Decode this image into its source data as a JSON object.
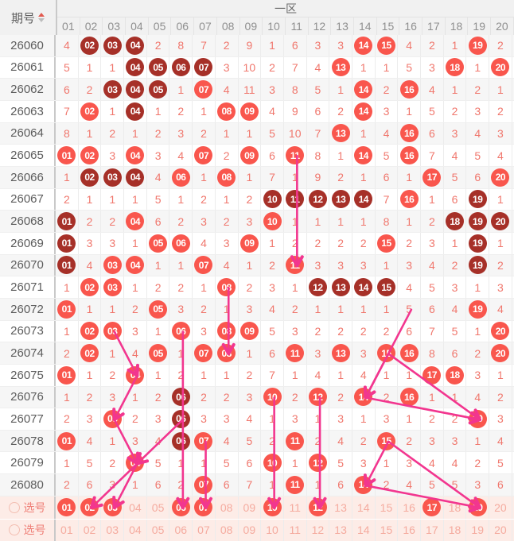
{
  "header": {
    "issue_col": "期号",
    "zone_label": "一区",
    "columns": [
      "01",
      "02",
      "03",
      "04",
      "05",
      "06",
      "07",
      "08",
      "09",
      "10",
      "11",
      "12",
      "13",
      "14",
      "15",
      "16",
      "17",
      "18",
      "19",
      "20"
    ]
  },
  "colors": {
    "header_bg": "#f1f1f1",
    "header_text": "#8f8f8f",
    "zone_text": "#666666",
    "issue_text": "#5c5c5c",
    "stripe_bg": "#f6f6f6",
    "miss_text": "#f0776d",
    "ball_light": "#f9564d",
    "ball_dark": "#a63028",
    "arrow": "#f2368f",
    "sel_bg": "#fdece7",
    "sel_text_dim": "#f5ab9f",
    "sel_label": "#ef8078",
    "radio_border": "#f3beb2",
    "sort_up": "#e25a50",
    "sort_down": "#bdbdbd",
    "grid_line": "#ececec"
  },
  "rows": [
    {
      "issue": "26060",
      "cells": [
        "4",
        {
          "v": "02",
          "b": "d"
        },
        {
          "v": "03",
          "b": "d"
        },
        {
          "v": "04",
          "b": "d"
        },
        "2",
        "8",
        "7",
        "2",
        "9",
        "1",
        "6",
        "3",
        "3",
        {
          "v": "14",
          "b": "l"
        },
        {
          "v": "15",
          "b": "l"
        },
        "4",
        "2",
        "1",
        {
          "v": "19",
          "b": "l"
        },
        "2"
      ]
    },
    {
      "issue": "26061",
      "cells": [
        "5",
        "1",
        "1",
        {
          "v": "04",
          "b": "d"
        },
        {
          "v": "05",
          "b": "d"
        },
        {
          "v": "06",
          "b": "d"
        },
        {
          "v": "07",
          "b": "d"
        },
        "3",
        "10",
        "2",
        "7",
        "4",
        {
          "v": "13",
          "b": "l"
        },
        "1",
        "1",
        "5",
        "3",
        {
          "v": "18",
          "b": "l"
        },
        "1",
        {
          "v": "20",
          "b": "l"
        }
      ]
    },
    {
      "issue": "26062",
      "cells": [
        "6",
        "2",
        {
          "v": "03",
          "b": "d"
        },
        {
          "v": "04",
          "b": "d"
        },
        {
          "v": "05",
          "b": "d"
        },
        "1",
        {
          "v": "07",
          "b": "l"
        },
        "4",
        "11",
        "3",
        "8",
        "5",
        "1",
        {
          "v": "14",
          "b": "l"
        },
        "2",
        {
          "v": "16",
          "b": "l"
        },
        "4",
        "1",
        "2",
        "1"
      ]
    },
    {
      "issue": "26063",
      "cells": [
        "7",
        {
          "v": "02",
          "b": "l"
        },
        "1",
        {
          "v": "04",
          "b": "d"
        },
        "1",
        "2",
        "1",
        {
          "v": "08",
          "b": "l"
        },
        {
          "v": "09",
          "b": "l"
        },
        "4",
        "9",
        "6",
        "2",
        {
          "v": "14",
          "b": "l"
        },
        "3",
        "1",
        "5",
        "2",
        "3",
        "2"
      ]
    },
    {
      "issue": "26064",
      "cells": [
        "8",
        "1",
        "2",
        "1",
        "2",
        "3",
        "2",
        "1",
        "1",
        "5",
        "10",
        "7",
        {
          "v": "13",
          "b": "l"
        },
        "1",
        "4",
        {
          "v": "16",
          "b": "l"
        },
        "6",
        "3",
        "4",
        "3"
      ]
    },
    {
      "issue": "26065",
      "cells": [
        {
          "v": "01",
          "b": "l"
        },
        {
          "v": "02",
          "b": "l"
        },
        "3",
        {
          "v": "04",
          "b": "l"
        },
        "3",
        "4",
        {
          "v": "07",
          "b": "l"
        },
        "2",
        {
          "v": "09",
          "b": "l"
        },
        "6",
        {
          "v": "11",
          "b": "l"
        },
        "8",
        "1",
        {
          "v": "14",
          "b": "l"
        },
        "5",
        {
          "v": "16",
          "b": "l"
        },
        "7",
        "4",
        "5",
        "4"
      ]
    },
    {
      "issue": "26066",
      "cells": [
        "1",
        {
          "v": "02",
          "b": "d"
        },
        {
          "v": "03",
          "b": "d"
        },
        {
          "v": "04",
          "b": "d"
        },
        "4",
        {
          "v": "06",
          "b": "l"
        },
        "1",
        {
          "v": "08",
          "b": "l"
        },
        "1",
        "7",
        "1",
        "9",
        "2",
        "1",
        "6",
        "1",
        {
          "v": "17",
          "b": "l"
        },
        "5",
        "6",
        {
          "v": "20",
          "b": "l"
        }
      ]
    },
    {
      "issue": "26067",
      "cells": [
        "2",
        "1",
        "1",
        "1",
        "5",
        "1",
        "2",
        "1",
        "2",
        {
          "v": "10",
          "b": "d"
        },
        {
          "v": "11",
          "b": "d"
        },
        {
          "v": "12",
          "b": "d"
        },
        {
          "v": "13",
          "b": "d"
        },
        {
          "v": "14",
          "b": "d"
        },
        "7",
        {
          "v": "16",
          "b": "l"
        },
        "1",
        "6",
        {
          "v": "19",
          "b": "d"
        },
        "1"
      ]
    },
    {
      "issue": "26068",
      "cells": [
        {
          "v": "01",
          "b": "d"
        },
        "2",
        "2",
        {
          "v": "04",
          "b": "l"
        },
        "6",
        "2",
        "3",
        "2",
        "3",
        {
          "v": "10",
          "b": "l"
        },
        "1",
        "1",
        "1",
        "1",
        "8",
        "1",
        "2",
        {
          "v": "18",
          "b": "d"
        },
        {
          "v": "19",
          "b": "d"
        },
        {
          "v": "20",
          "b": "d"
        }
      ]
    },
    {
      "issue": "26069",
      "cells": [
        {
          "v": "01",
          "b": "d"
        },
        "3",
        "3",
        "1",
        {
          "v": "05",
          "b": "l"
        },
        {
          "v": "06",
          "b": "l"
        },
        "4",
        "3",
        {
          "v": "09",
          "b": "l"
        },
        "1",
        "2",
        "2",
        "2",
        "2",
        {
          "v": "15",
          "b": "l"
        },
        "2",
        "3",
        "1",
        {
          "v": "19",
          "b": "d"
        },
        "1"
      ]
    },
    {
      "issue": "26070",
      "cells": [
        {
          "v": "01",
          "b": "d"
        },
        "4",
        {
          "v": "03",
          "b": "l"
        },
        {
          "v": "04",
          "b": "l"
        },
        "1",
        "1",
        {
          "v": "07",
          "b": "l"
        },
        "4",
        "1",
        "2",
        {
          "v": "11",
          "b": "l"
        },
        "3",
        "3",
        "3",
        "1",
        "3",
        "4",
        "2",
        {
          "v": "19",
          "b": "d"
        },
        "2"
      ]
    },
    {
      "issue": "26071",
      "cells": [
        "1",
        {
          "v": "02",
          "b": "l"
        },
        {
          "v": "03",
          "b": "l"
        },
        "1",
        "2",
        "2",
        "1",
        {
          "v": "08",
          "b": "l"
        },
        "2",
        "3",
        "1",
        {
          "v": "12",
          "b": "d"
        },
        {
          "v": "13",
          "b": "d"
        },
        {
          "v": "14",
          "b": "d"
        },
        {
          "v": "15",
          "b": "d"
        },
        "4",
        "5",
        "3",
        "1",
        "3"
      ]
    },
    {
      "issue": "26072",
      "cells": [
        {
          "v": "01",
          "b": "l"
        },
        "1",
        "1",
        "2",
        {
          "v": "05",
          "b": "l"
        },
        "3",
        "2",
        "1",
        "3",
        "4",
        "2",
        "1",
        "1",
        "1",
        "1",
        "5",
        "6",
        "4",
        {
          "v": "19",
          "b": "l"
        },
        "4"
      ]
    },
    {
      "issue": "26073",
      "cells": [
        "1",
        {
          "v": "02",
          "b": "l"
        },
        {
          "v": "03",
          "b": "l"
        },
        "3",
        "1",
        {
          "v": "06",
          "b": "l"
        },
        "3",
        {
          "v": "08",
          "b": "l"
        },
        {
          "v": "09",
          "b": "l"
        },
        "5",
        "3",
        "2",
        "2",
        "2",
        "2",
        "6",
        "7",
        "5",
        "1",
        {
          "v": "20",
          "b": "l"
        }
      ]
    },
    {
      "issue": "26074",
      "cells": [
        "2",
        {
          "v": "02",
          "b": "l"
        },
        "1",
        "4",
        {
          "v": "05",
          "b": "l"
        },
        "1",
        {
          "v": "07",
          "b": "l"
        },
        {
          "v": "08",
          "b": "l"
        },
        "1",
        "6",
        {
          "v": "11",
          "b": "l"
        },
        "3",
        {
          "v": "13",
          "b": "l"
        },
        "3",
        {
          "v": "15",
          "b": "l"
        },
        {
          "v": "16",
          "b": "l"
        },
        "8",
        "6",
        "2",
        {
          "v": "20",
          "b": "l"
        }
      ]
    },
    {
      "issue": "26075",
      "cells": [
        {
          "v": "01",
          "b": "l"
        },
        "1",
        "2",
        {
          "v": "04",
          "b": "l"
        },
        "1",
        "2",
        "1",
        "1",
        "2",
        "7",
        "1",
        "4",
        "1",
        "4",
        "1",
        "1",
        {
          "v": "17",
          "b": "l"
        },
        {
          "v": "18",
          "b": "l"
        },
        "3",
        "1"
      ]
    },
    {
      "issue": "26076",
      "cells": [
        "1",
        "2",
        "3",
        "1",
        "2",
        {
          "v": "06",
          "b": "d"
        },
        "2",
        "2",
        "3",
        {
          "v": "10",
          "b": "l"
        },
        "2",
        {
          "v": "12",
          "b": "l"
        },
        "2",
        {
          "v": "14",
          "b": "l"
        },
        "2",
        {
          "v": "16",
          "b": "l"
        },
        "1",
        "1",
        "4",
        "2"
      ]
    },
    {
      "issue": "26077",
      "cells": [
        "2",
        "3",
        {
          "v": "03",
          "b": "l"
        },
        "2",
        "3",
        {
          "v": "06",
          "b": "d"
        },
        "3",
        "3",
        "4",
        "1",
        "3",
        "1",
        "3",
        "1",
        "3",
        "1",
        "2",
        "2",
        {
          "v": "19",
          "b": "l"
        },
        "3"
      ]
    },
    {
      "issue": "26078",
      "cells": [
        {
          "v": "01",
          "b": "l"
        },
        "4",
        "1",
        "3",
        "4",
        {
          "v": "06",
          "b": "d"
        },
        {
          "v": "07",
          "b": "l"
        },
        "4",
        "5",
        "2",
        {
          "v": "11",
          "b": "l"
        },
        "2",
        "4",
        "2",
        {
          "v": "15",
          "b": "l"
        },
        "2",
        "3",
        "3",
        "1",
        "4"
      ]
    },
    {
      "issue": "26079",
      "cells": [
        "1",
        "5",
        "2",
        {
          "v": "04",
          "b": "l"
        },
        "5",
        "1",
        "1",
        "5",
        "6",
        {
          "v": "10",
          "b": "l"
        },
        "1",
        {
          "v": "12",
          "b": "l"
        },
        "5",
        "3",
        "1",
        "3",
        "4",
        "4",
        "2",
        "5"
      ]
    },
    {
      "issue": "26080",
      "cells": [
        "2",
        "6",
        "3",
        "1",
        "6",
        "2",
        {
          "v": "07",
          "b": "l"
        },
        "6",
        "7",
        "1",
        {
          "v": "11",
          "b": "l"
        },
        "1",
        "6",
        {
          "v": "14",
          "b": "l"
        },
        "2",
        "4",
        "5",
        "5",
        "3",
        "6"
      ]
    }
  ],
  "selection": {
    "label": "选号",
    "row1": [
      {
        "v": "01",
        "on": true
      },
      {
        "v": "02",
        "on": true
      },
      {
        "v": "03",
        "on": true
      },
      {
        "v": "04",
        "on": false
      },
      {
        "v": "05",
        "on": false
      },
      {
        "v": "06",
        "on": true
      },
      {
        "v": "07",
        "on": true
      },
      {
        "v": "08",
        "on": false
      },
      {
        "v": "09",
        "on": false
      },
      {
        "v": "10",
        "on": true
      },
      {
        "v": "11",
        "on": false
      },
      {
        "v": "12",
        "on": true
      },
      {
        "v": "13",
        "on": false
      },
      {
        "v": "14",
        "on": false
      },
      {
        "v": "15",
        "on": false
      },
      {
        "v": "16",
        "on": false
      },
      {
        "v": "17",
        "on": true
      },
      {
        "v": "18",
        "on": false
      },
      {
        "v": "19",
        "on": true
      },
      {
        "v": "20",
        "on": false
      }
    ],
    "row2": [
      "01",
      "02",
      "03",
      "04",
      "05",
      "06",
      "07",
      "08",
      "09",
      "10",
      "11",
      "12",
      "13",
      "14",
      "15",
      "16",
      "17",
      "18",
      "19",
      "20"
    ]
  },
  "arrows": [
    {
      "from": [
        5,
        11
      ],
      "to": [
        10,
        11
      ]
    },
    {
      "from": [
        11,
        8
      ],
      "to": [
        14,
        8
      ]
    },
    {
      "from": [
        13,
        3
      ],
      "to": [
        15,
        4
      ]
    },
    {
      "from": [
        15,
        4
      ],
      "to": [
        17,
        3
      ]
    },
    {
      "from": [
        17,
        3
      ],
      "to": [
        19,
        4
      ]
    },
    {
      "from": [
        17,
        6
      ],
      "to": [
        19,
        4
      ]
    },
    {
      "from": [
        19,
        4
      ],
      "to": [
        "s",
        2
      ]
    },
    {
      "from": [
        19,
        4
      ],
      "to": [
        "s",
        3
      ]
    },
    {
      "from": [
        13,
        6
      ],
      "to": [
        "s",
        6
      ]
    },
    {
      "from": [
        18,
        7
      ],
      "to": [
        "s",
        7
      ]
    },
    {
      "from": [
        16,
        10
      ],
      "to": [
        "s",
        10
      ]
    },
    {
      "from": [
        16,
        12
      ],
      "to": [
        "s",
        12
      ]
    },
    {
      "from": [
        12,
        16
      ],
      "to": [
        16,
        14
      ]
    },
    {
      "from": [
        14,
        15
      ],
      "to": [
        16,
        14
      ]
    },
    {
      "from": [
        16,
        14
      ],
      "to": [
        17,
        19
      ]
    },
    {
      "from": [
        14,
        15
      ],
      "to": [
        17,
        19
      ]
    },
    {
      "from": [
        18,
        15
      ],
      "to": [
        20,
        14
      ]
    },
    {
      "from": [
        18,
        15
      ],
      "to": [
        "s",
        19
      ]
    },
    {
      "from": [
        20,
        14
      ],
      "to": [
        "s",
        19
      ]
    }
  ]
}
